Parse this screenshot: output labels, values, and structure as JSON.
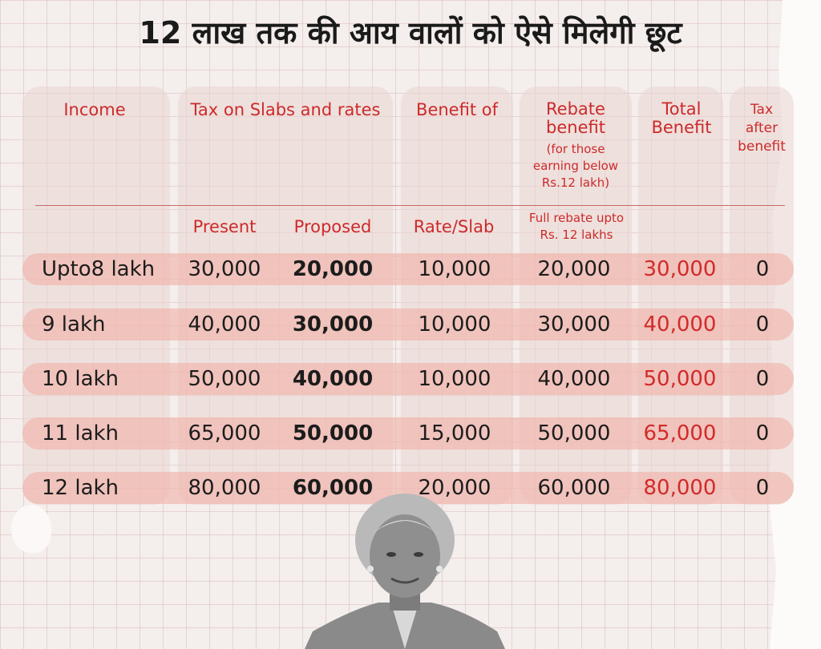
{
  "title": "12 लाख तक की आय वालों को ऐसे मिलेगी छूट",
  "headers": {
    "income": "Income",
    "tax_on_slabs": "Tax on Slabs and rates",
    "benefit_of": "Benefit of",
    "rebate_benefit": "Rebate benefit",
    "rebate_note": "(for those earning below Rs.12 lakh)",
    "total_benefit": "Total Benefit",
    "tax_after": "Tax after benefit",
    "present": "Present",
    "proposed": "Proposed",
    "rate_slab": "Rate/Slab",
    "full_rebate": "Full rebate upto Rs. 12 lakhs"
  },
  "rows": [
    {
      "income": "Upto8 lakh",
      "present": "30,000",
      "proposed": "20,000",
      "rate_slab": "10,000",
      "rebate": "20,000",
      "total": "30,000",
      "after": "0"
    },
    {
      "income": "9 lakh",
      "present": "40,000",
      "proposed": "30,000",
      "rate_slab": "10,000",
      "rebate": "30,000",
      "total": "40,000",
      "after": "0"
    },
    {
      "income": "10 lakh",
      "present": "50,000",
      "proposed": "40,000",
      "rate_slab": "10,000",
      "rebate": "40,000",
      "total": "50,000",
      "after": "0"
    },
    {
      "income": "11 lakh",
      "present": "65,000",
      "proposed": "50,000",
      "rate_slab": "15,000",
      "rebate": "50,000",
      "total": "65,000",
      "after": "0"
    },
    {
      "income": "12 lakh",
      "present": "80,000",
      "proposed": "60,000",
      "rate_slab": "20,000",
      "rebate": "60,000",
      "total": "80,000",
      "after": "0"
    }
  ],
  "colors": {
    "header_red": "#cc2a2a",
    "total_red": "#d22a2a",
    "row_band": "#f0b2a8",
    "grid_bg": "#f4eeec"
  }
}
